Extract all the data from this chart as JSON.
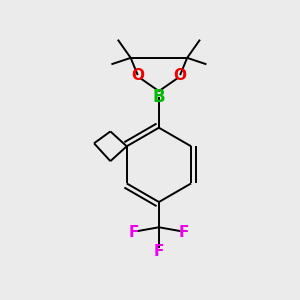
{
  "bg_color": "#ebebeb",
  "atom_colors": {
    "B": "#00bb00",
    "O": "#ee0000",
    "F": "#ee00ee",
    "C": "#000000"
  },
  "bond_color": "#000000",
  "bond_width": 1.4,
  "double_sep": 0.08,
  "figsize": [
    3.0,
    3.0
  ],
  "dpi": 100
}
